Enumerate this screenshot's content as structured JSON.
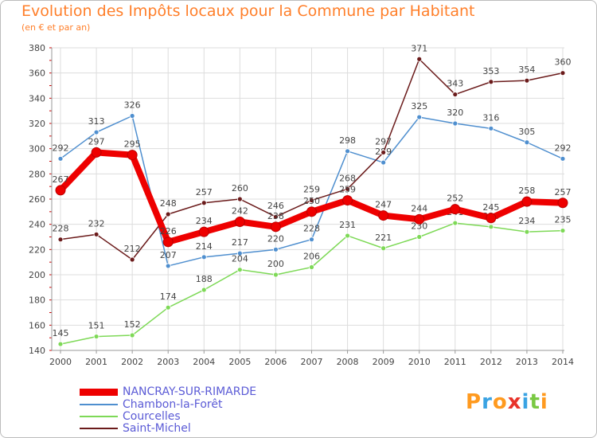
{
  "title": "Evolution des Impôts locaux pour la Commune par Habitant",
  "subtitle": "(en € et par an)",
  "logo": "Proxiti",
  "chart_data": {
    "type": "line",
    "title": "Evolution des Impôts locaux pour la Commune par Habitant",
    "ylabel": "(en € et par an)",
    "xlabel": "",
    "ylim": [
      140,
      380
    ],
    "yticks": [
      140,
      160,
      180,
      200,
      220,
      240,
      260,
      280,
      300,
      320,
      340,
      360,
      380
    ],
    "grid": true,
    "legend_position": "bottom-left",
    "x": [
      "2000",
      "2001",
      "2002",
      "2003",
      "2004",
      "2005",
      "2006",
      "2007",
      "2008",
      "2009",
      "2010",
      "2011",
      "2012",
      "2013",
      "2014"
    ],
    "series": [
      {
        "name": "NANCRAY-SUR-RIMARDE",
        "color": "#ee0000",
        "values": [
          267,
          297,
          295,
          226,
          234,
          242,
          238,
          250,
          259,
          247,
          244,
          252,
          245,
          258,
          257
        ]
      },
      {
        "name": "Chambon-la-Forêt",
        "color": "#4f8fcf",
        "values": [
          292,
          313,
          326,
          207,
          214,
          217,
          220,
          228,
          298,
          289,
          325,
          320,
          316,
          305,
          292
        ]
      },
      {
        "name": "Courcelles",
        "color": "#7ed957",
        "values": [
          145,
          151,
          152,
          174,
          188,
          204,
          200,
          206,
          231,
          221,
          230,
          241,
          238,
          234,
          235
        ]
      },
      {
        "name": "Saint-Michel",
        "color": "#6b1b1b",
        "values": [
          228,
          232,
          212,
          248,
          257,
          260,
          246,
          259,
          268,
          297,
          371,
          343,
          353,
          354,
          360
        ]
      }
    ]
  }
}
